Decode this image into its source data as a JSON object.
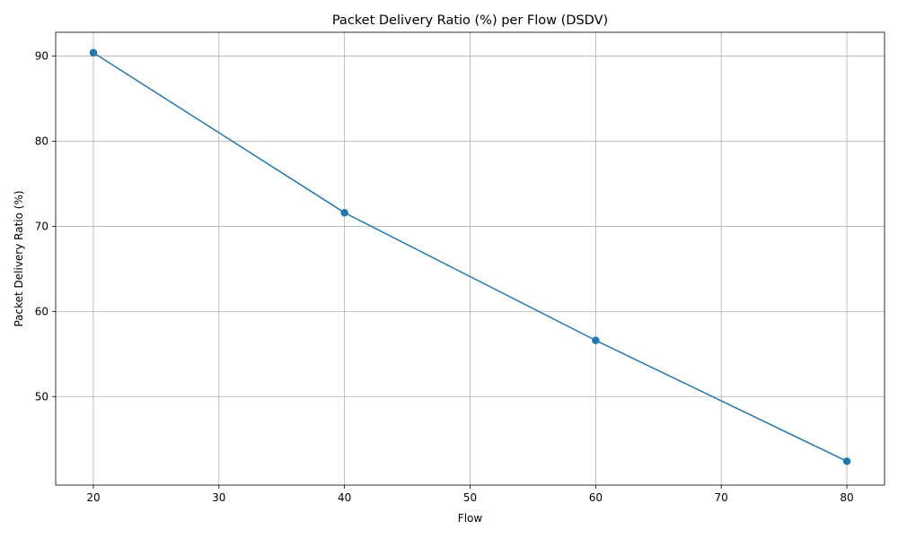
{
  "chart_data": {
    "type": "line",
    "title": "Packet Delivery Ratio (%) per Flow (DSDV)",
    "xlabel": "Flow",
    "ylabel": "Packet Delivery Ratio (%)",
    "x": [
      20,
      40,
      60,
      80
    ],
    "series": [
      {
        "values": [
          90.4,
          71.6,
          56.6,
          42.4
        ]
      }
    ],
    "xlim": [
      17,
      83
    ],
    "ylim": [
      39.6,
      92.8
    ],
    "xticks": [
      20,
      30,
      40,
      50,
      60,
      70,
      80
    ],
    "yticks": [
      50,
      60,
      70,
      80,
      90
    ],
    "grid": true,
    "line_color": "#1f77b4",
    "marker": "circle"
  }
}
